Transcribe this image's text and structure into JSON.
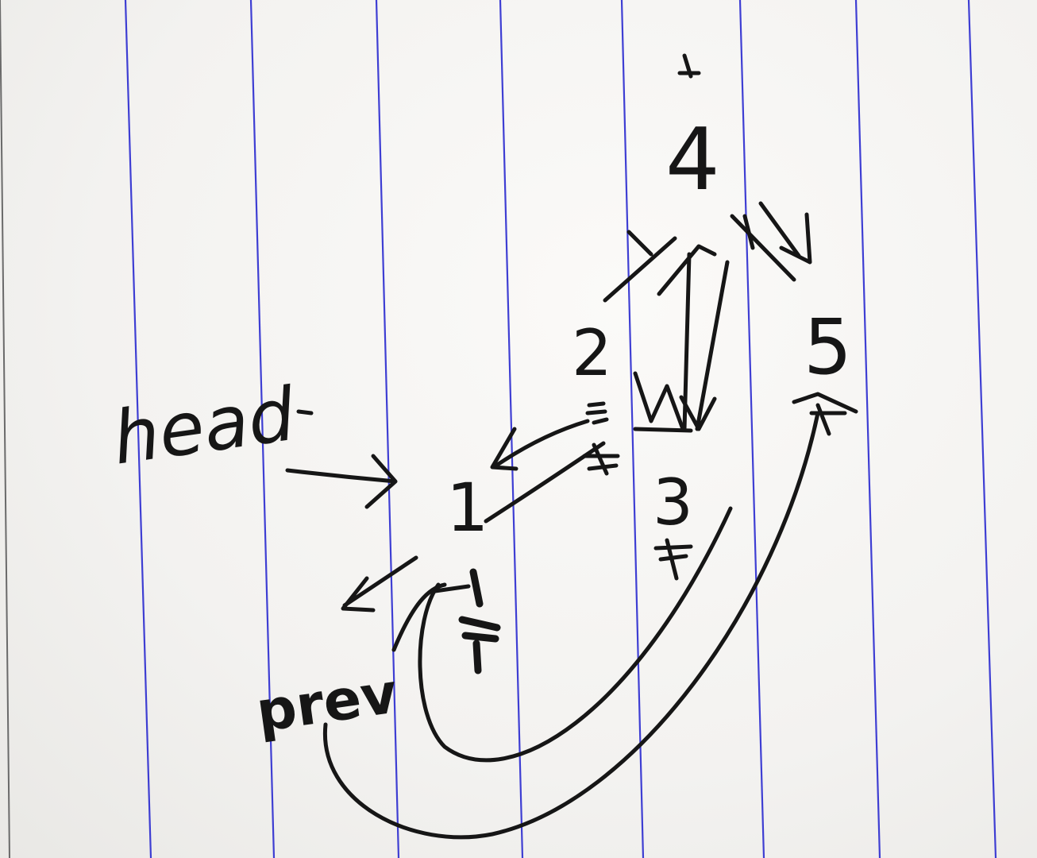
{
  "photo": {
    "subject": "hand-drawn linked list diagram on lined notebook paper",
    "paper_color": "#f6f5f3",
    "rule_color": "#2b2bd0",
    "ink_color": "#161616"
  },
  "labels": {
    "head": "head",
    "prev": "prev",
    "nodes": [
      "1",
      "2",
      "3",
      "4",
      "5"
    ]
  }
}
